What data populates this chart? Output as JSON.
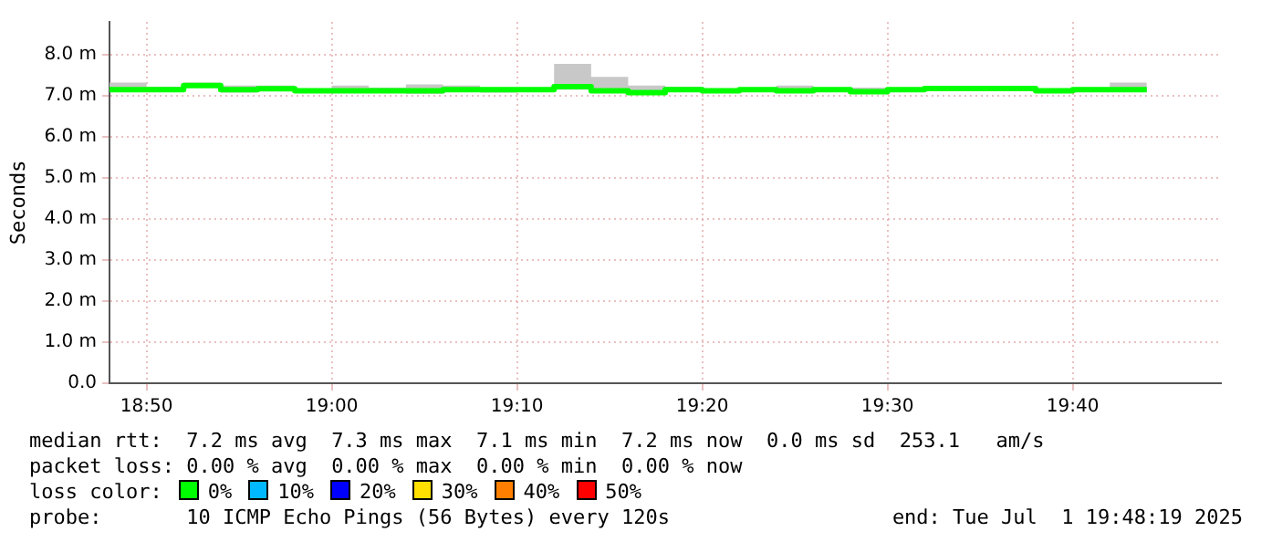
{
  "chart_data": {
    "type": "step",
    "ylabel": "Seconds",
    "legend": false,
    "grid": true,
    "x": [
      "2025-07-01T18:48",
      "2025-07-01T18:50",
      "2025-07-01T18:52",
      "2025-07-01T18:54",
      "2025-07-01T18:56",
      "2025-07-01T18:58",
      "2025-07-01T19:00",
      "2025-07-01T19:02",
      "2025-07-01T19:04",
      "2025-07-01T19:06",
      "2025-07-01T19:08",
      "2025-07-01T19:10",
      "2025-07-01T19:12",
      "2025-07-01T19:14",
      "2025-07-01T19:16",
      "2025-07-01T19:18",
      "2025-07-01T19:20",
      "2025-07-01T19:22",
      "2025-07-01T19:24",
      "2025-07-01T19:26",
      "2025-07-01T19:28",
      "2025-07-01T19:30",
      "2025-07-01T19:32",
      "2025-07-01T19:34",
      "2025-07-01T19:36",
      "2025-07-01T19:38",
      "2025-07-01T19:40",
      "2025-07-01T19:42",
      "2025-07-01T19:44"
    ],
    "series": [
      {
        "color": "#00ff00",
        "values": [
          7.12,
          7.15,
          7.15,
          7.25,
          7.15,
          7.17,
          7.12,
          7.12,
          7.12,
          7.12,
          7.15,
          7.15,
          7.15,
          7.22,
          7.12,
          7.08,
          7.15,
          7.12,
          7.15,
          7.12,
          7.15,
          7.1,
          7.15,
          7.18,
          7.18,
          7.18,
          7.12,
          7.15,
          7.15
        ],
        "lower": [
          7.08,
          7.1,
          7.12,
          7.2,
          7.08,
          7.12,
          7.1,
          7.1,
          7.08,
          7.05,
          7.1,
          7.08,
          7.1,
          7.15,
          7.1,
          7.05,
          7.1,
          7.1,
          7.1,
          7.08,
          7.1,
          7.05,
          7.1,
          7.12,
          7.12,
          7.12,
          7.08,
          7.1,
          7.1
        ],
        "upper": [
          7.15,
          7.32,
          7.22,
          7.32,
          7.25,
          7.25,
          7.15,
          7.25,
          7.2,
          7.28,
          7.25,
          7.2,
          7.2,
          7.78,
          7.46,
          7.25,
          7.22,
          7.15,
          7.2,
          7.25,
          7.2,
          7.2,
          7.2,
          7.22,
          7.2,
          7.2,
          7.15,
          7.2,
          7.32
        ]
      }
    ],
    "xlim": [
      "2025-07-01T18:48",
      "2025-07-01T19:48"
    ],
    "xticks": [
      {
        "value": "2025-07-01T18:50",
        "label": "18:50"
      },
      {
        "value": "2025-07-01T19:00",
        "label": "19:00"
      },
      {
        "value": "2025-07-01T19:10",
        "label": "19:10"
      },
      {
        "value": "2025-07-01T19:20",
        "label": "19:20"
      },
      {
        "value": "2025-07-01T19:30",
        "label": "19:30"
      },
      {
        "value": "2025-07-01T19:40",
        "label": "19:40"
      }
    ],
    "ylim": [
      0,
      8.8
    ],
    "yticks": [
      {
        "value": 0,
        "label": "0.0"
      },
      {
        "value": 1,
        "label": "1.0 m"
      },
      {
        "value": 2,
        "label": "2.0 m"
      },
      {
        "value": 3,
        "label": "3.0 m"
      },
      {
        "value": 4,
        "label": "4.0 m"
      },
      {
        "value": 5,
        "label": "5.0 m"
      },
      {
        "value": 6,
        "label": "6.0 m"
      },
      {
        "value": 7,
        "label": "7.0 m"
      },
      {
        "value": 8,
        "label": "8.0 m"
      }
    ],
    "annotations": [
      "median rtt:  7.2 ms avg  7.3 ms max  7.1 ms min  7.2 ms now  0.0 ms sd  253.1   am/s",
      "packet loss: 0.00 % avg  0.00 % max  0.00 % min  0.00 % now",
      "loss color:",
      "0%",
      "10%",
      "20%",
      "30%",
      "40%",
      "50%",
      "probe:       10 ICMP Echo Pings (56 Bytes) every 120s",
      "end: Tue Jul  1 19:48:19 2025"
    ]
  }
}
